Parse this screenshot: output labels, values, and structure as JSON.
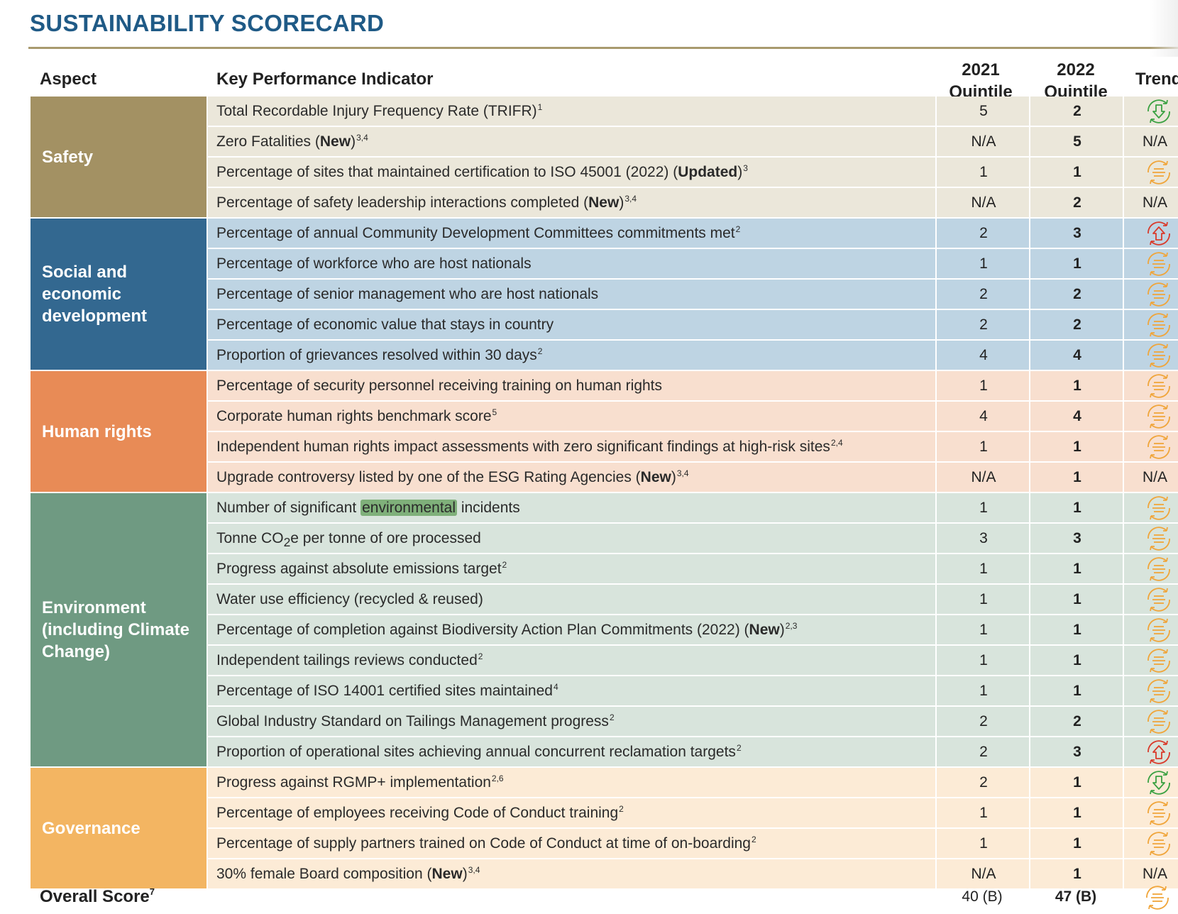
{
  "title": "SUSTAINABILITY SCORECARD",
  "headers": {
    "aspect": "Aspect",
    "kpi": "Key Performance Indicator",
    "q2021_line1": "2021",
    "q2021_line2": "Quintile",
    "q2022_line1": "2022",
    "q2022_line2": "Quintile",
    "trend": "Trend"
  },
  "colors": {
    "title": "#1f5a86",
    "rule": "#a89a6e",
    "trend_down_green": "#3aa142",
    "trend_up_red": "#d93a2b",
    "trend_flat_orange": "#f0a53a"
  },
  "groups": [
    {
      "name": "Safety",
      "color": "#a39163",
      "row_bg": "#ebe7da",
      "rows": [
        {
          "kpi": "Total Recordable Injury Frequency Rate (TRIFR)",
          "sup": "1",
          "q2021": "5",
          "q2022": "2",
          "trend": "down"
        },
        {
          "kpi": "Zero Fatalities (",
          "bold": "New",
          "after": ")",
          "sup": "3,4",
          "q2021": "N/A",
          "q2022": "5",
          "trend": "N/A"
        },
        {
          "kpi": "Percentage of sites that maintained certification to ISO 45001 (2022) (",
          "bold": "Updated",
          "after": ")",
          "sup": "3",
          "q2021": "1",
          "q2022": "1",
          "trend": "flat"
        },
        {
          "kpi": "Percentage of safety leadership interactions completed (",
          "bold": "New",
          "after": ")",
          "sup": "3,4",
          "q2021": "N/A",
          "q2022": "2",
          "trend": "N/A"
        }
      ]
    },
    {
      "name": "Social and economic development",
      "color": "#336890",
      "row_bg": "#bed4e3",
      "rows": [
        {
          "kpi": "Percentage of annual Community Development Committees commitments met",
          "sup": "2",
          "q2021": "2",
          "q2022": "3",
          "trend": "up"
        },
        {
          "kpi": "Percentage of workforce who are host nationals",
          "q2021": "1",
          "q2022": "1",
          "trend": "flat"
        },
        {
          "kpi": "Percentage of senior management who are host nationals",
          "q2021": "2",
          "q2022": "2",
          "trend": "flat"
        },
        {
          "kpi": "Percentage of economic value that stays in country",
          "q2021": "2",
          "q2022": "2",
          "trend": "flat"
        },
        {
          "kpi": "Proportion of grievances resolved within 30 days",
          "sup": "2",
          "q2021": "4",
          "q2022": "4",
          "trend": "flat"
        }
      ]
    },
    {
      "name": "Human rights",
      "color": "#e88b56",
      "row_bg": "#f8dfcf",
      "rows": [
        {
          "kpi": "Percentage of security personnel receiving training on human rights",
          "q2021": "1",
          "q2022": "1",
          "trend": "flat"
        },
        {
          "kpi": "Corporate human rights benchmark score",
          "sup": "5",
          "q2021": "4",
          "q2022": "4",
          "trend": "flat"
        },
        {
          "kpi": "Independent human rights impact assessments with zero significant findings at high-risk sites",
          "sup": "2,4",
          "q2021": "1",
          "q2022": "1",
          "trend": "flat"
        },
        {
          "kpi": "Upgrade controversy listed by one of the ESG Rating Agencies (",
          "bold": "New",
          "after": ")",
          "sup": "3,4",
          "q2021": "N/A",
          "q2022": "1",
          "trend": "N/A"
        }
      ]
    },
    {
      "name": "Environment (including Climate Change)",
      "color": "#6f9a82",
      "row_bg": "#d8e4dc",
      "rows": [
        {
          "kpi": "Number of significant ",
          "highlight": "environmental",
          "after": " incidents",
          "q2021": "1",
          "q2022": "1",
          "trend": "flat"
        },
        {
          "kpi": "Tonne CO",
          "sub": "2",
          "after": "e per tonne of ore processed",
          "q2021": "3",
          "q2022": "3",
          "trend": "flat"
        },
        {
          "kpi": "Progress against absolute emissions target",
          "sup": "2",
          "q2021": "1",
          "q2022": "1",
          "trend": "flat"
        },
        {
          "kpi": "Water use efficiency (recycled & reused)",
          "q2021": "1",
          "q2022": "1",
          "trend": "flat"
        },
        {
          "kpi": "Percentage of completion against Biodiversity Action Plan Commitments (2022) (",
          "bold": "New",
          "after": ")",
          "sup": "2,3",
          "q2021": "1",
          "q2022": "1",
          "trend": "flat"
        },
        {
          "kpi": "Independent tailings reviews conducted",
          "sup": "2",
          "q2021": "1",
          "q2022": "1",
          "trend": "flat"
        },
        {
          "kpi": "Percentage of ISO 14001 certified sites maintained",
          "sup": "4",
          "q2021": "1",
          "q2022": "1",
          "trend": "flat"
        },
        {
          "kpi": "Global Industry Standard on Tailings Management progress",
          "sup": "2",
          "q2021": "2",
          "q2022": "2",
          "trend": "flat"
        },
        {
          "kpi": "Proportion of operational sites achieving annual concurrent reclamation targets",
          "sup": "2",
          "q2021": "2",
          "q2022": "3",
          "trend": "up"
        }
      ]
    },
    {
      "name": "Governance",
      "color": "#f3b562",
      "row_bg": "#fcebd6",
      "rows": [
        {
          "kpi": "Progress against RGMP+ implementation",
          "sup": "2,6",
          "q2021": "2",
          "q2022": "1",
          "trend": "down"
        },
        {
          "kpi": "Percentage of employees receiving Code of Conduct training",
          "sup": "2",
          "q2021": "1",
          "q2022": "1",
          "trend": "flat"
        },
        {
          "kpi": "Percentage of supply partners trained on Code of Conduct at time of on-boarding",
          "sup": "2",
          "q2021": "1",
          "q2022": "1",
          "trend": "flat"
        },
        {
          "kpi": "30% female Board composition (",
          "bold": "New",
          "after": ")",
          "sup": "3,4",
          "q2021": "N/A",
          "q2022": "1",
          "trend": "N/A"
        }
      ]
    }
  ],
  "overall": {
    "label": "Overall Score",
    "sup": "7",
    "q2021": "40 (B)",
    "q2022": "47 (B)",
    "trend": "flat"
  }
}
